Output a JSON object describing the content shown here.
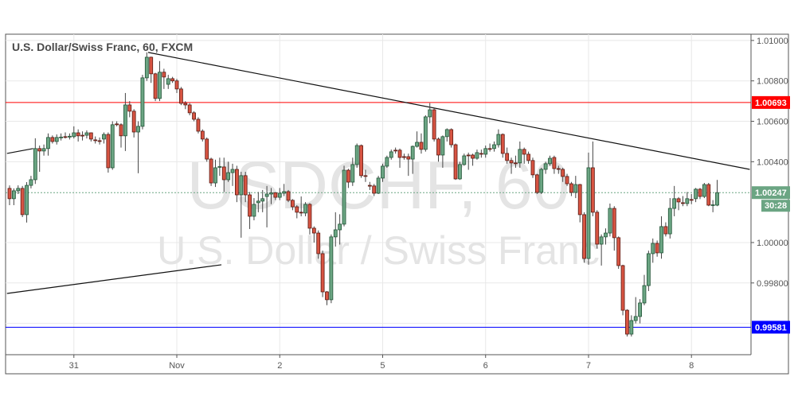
{
  "chart_data": {
    "type": "candlestick",
    "title": "U.S. Dollar/Swiss Franc, 60, FXCM",
    "watermark": {
      "symbol": "USDCHF, 60",
      "name": "U.S. Dollar / Swiss Franc"
    },
    "ylim": [
      0.99445,
      1.01031
    ],
    "y_ticks": [
      "1.01000",
      "1.00800",
      "1.00600",
      "1.00400",
      "1.00000",
      "0.99800"
    ],
    "x_ticks": [
      {
        "label": "31",
        "index": 15
      },
      {
        "label": "Nov",
        "index": 39
      },
      {
        "label": "2",
        "index": 63
      },
      {
        "label": "5",
        "index": 87
      },
      {
        "label": "6",
        "index": 111
      },
      {
        "label": "7",
        "index": 135
      },
      {
        "label": "8",
        "index": 159
      }
    ],
    "grid": true,
    "colors": {
      "up": "#6ba583",
      "down": "#d75442",
      "up_border": "#225437",
      "down_border": "#5b1a13",
      "resistance": "#e00000",
      "support": "#0000dd",
      "last_price": "#6ba583"
    },
    "horizontal_lines": [
      {
        "price": 1.00693,
        "label": "1.00693",
        "color": "#ff0000"
      },
      {
        "price": 0.99581,
        "label": "0.99581",
        "color": "#0000ff"
      }
    ],
    "last_price": {
      "price": 1.00247,
      "label": "1.00247",
      "countdown": "30:28"
    },
    "trendlines": [
      {
        "from": [
          32.3,
          1.00941
        ],
        "to": [
          172.6,
          1.00362
        ]
      },
      {
        "from": [
          -0.6,
          0.99748
        ],
        "to": [
          49.4,
          0.9989
        ]
      },
      {
        "from": [
          -0.6,
          1.00441
        ],
        "to": [
          5.5,
          1.00465
        ]
      }
    ],
    "candles_ohlc": [
      [
        1.00268,
        1.00283,
        1.00185,
        1.00217
      ],
      [
        1.00217,
        1.00268,
        1.00185,
        1.00256
      ],
      [
        1.00256,
        1.00283,
        1.0024,
        1.00268
      ],
      [
        1.00268,
        1.0028,
        1.00126,
        1.00138
      ],
      [
        1.00138,
        1.00299,
        1.00099,
        1.00283
      ],
      [
        1.00283,
        1.0033,
        1.00268,
        1.00311
      ],
      [
        1.00311,
        1.00516,
        1.0029,
        1.00465
      ],
      [
        1.00465,
        1.0048,
        1.0035,
        1.00453
      ],
      [
        1.00453,
        1.00485,
        1.0043,
        1.00465
      ],
      [
        1.00465,
        1.0054,
        1.0043,
        1.0052
      ],
      [
        1.0052,
        1.0053,
        1.0049,
        1.005
      ],
      [
        1.005,
        1.00535,
        1.00485,
        1.0052
      ],
      [
        1.0052,
        1.0054,
        1.00505,
        1.00522
      ],
      [
        1.00524,
        1.00545,
        1.00515,
        1.00522
      ],
      [
        1.00522,
        1.0054,
        1.0051,
        1.00526
      ],
      [
        1.00524,
        1.00575,
        1.00515,
        1.00543
      ],
      [
        1.00543,
        1.0056,
        1.005,
        1.00528
      ],
      [
        1.00531,
        1.0055,
        1.00505,
        1.00529
      ],
      [
        1.00531,
        1.00555,
        1.00515,
        1.00543
      ],
      [
        1.00543,
        1.00545,
        1.005,
        1.00512
      ],
      [
        1.00508,
        1.00525,
        1.0049,
        1.00506
      ],
      [
        1.00504,
        1.0052,
        1.00485,
        1.00502
      ],
      [
        1.00512,
        1.00545,
        1.0049,
        1.00535
      ],
      [
        1.00535,
        1.00545,
        1.00346,
        1.0037
      ],
      [
        1.0037,
        1.006,
        1.0036,
        1.00583
      ],
      [
        1.00587,
        1.006,
        1.00575,
        1.00583
      ],
      [
        1.00583,
        1.0059,
        1.0047,
        1.00528
      ],
      [
        1.00528,
        1.0074,
        1.00453,
        1.00681
      ],
      [
        1.00681,
        1.007,
        1.0062,
        1.0065
      ],
      [
        1.0065,
        1.0066,
        1.0052,
        1.00547
      ],
      [
        1.00547,
        1.006,
        1.00343,
        1.00575
      ],
      [
        1.00575,
        1.0083,
        1.0056,
        1.00815
      ],
      [
        1.00815,
        1.00941,
        1.008,
        1.00917
      ],
      [
        1.00917,
        1.0092,
        1.0079,
        1.00835
      ],
      [
        1.00835,
        1.0084,
        1.007,
        1.00713
      ],
      [
        1.00713,
        1.00898,
        1.007,
        1.00843
      ],
      [
        1.00843,
        1.0086,
        1.0076,
        1.00819
      ],
      [
        1.00783,
        1.0083,
        1.0076,
        1.00811
      ],
      [
        1.00811,
        1.0082,
        1.0079,
        1.008
      ],
      [
        1.008,
        1.0081,
        1.0074,
        1.0076
      ],
      [
        1.0076,
        1.0077,
        1.0068,
        1.00689
      ],
      [
        1.00689,
        1.007,
        1.0066,
        1.00681
      ],
      [
        1.00681,
        1.0069,
        1.0063,
        1.00642
      ],
      [
        1.00642,
        1.0065,
        1.006,
        1.0061
      ],
      [
        1.0061,
        1.0062,
        1.0054,
        1.00551
      ],
      [
        1.00551,
        1.0056,
        1.005,
        1.00512
      ],
      [
        1.00512,
        1.0052,
        1.004,
        1.00413
      ],
      [
        1.00413,
        1.0042,
        1.0028,
        1.00295
      ],
      [
        1.00295,
        1.0041,
        1.00275,
        1.0037
      ],
      [
        1.00374,
        1.0042,
        1.0033,
        1.00376
      ],
      [
        1.00374,
        1.0042,
        1.0025,
        1.00311
      ],
      [
        1.00311,
        1.004,
        1.003,
        1.00346
      ],
      [
        1.00346,
        1.0039,
        1.0028,
        1.00362
      ],
      [
        1.00362,
        1.0038,
        1.002,
        1.00236
      ],
      [
        1.00236,
        1.0035,
        1.00024,
        1.00331
      ],
      [
        1.00331,
        1.0035,
        1.002,
        1.00236
      ],
      [
        1.00236,
        1.0025,
        1.00067,
        1.0013
      ],
      [
        1.0013,
        1.0022,
        1.0011,
        1.00189
      ],
      [
        1.00197,
        1.0025,
        1.0015,
        1.00205
      ],
      [
        1.00205,
        1.0026,
        1.0015,
        1.00217
      ],
      [
        1.00228,
        1.0028,
        1.00075,
        1.0024
      ],
      [
        1.0024,
        1.0027,
        1.0019,
        1.00246
      ],
      [
        1.00246,
        1.0025,
        1.0021,
        1.00224
      ],
      [
        1.00224,
        1.0027,
        1.0021,
        1.00244
      ],
      [
        1.00244,
        1.0029,
        1.0023,
        1.00252
      ],
      [
        1.00252,
        1.0026,
        1.002,
        1.00209
      ],
      [
        1.00209,
        1.00215,
        1.0016,
        1.00177
      ],
      [
        1.00177,
        1.00185,
        1.0012,
        1.0015
      ],
      [
        1.0015,
        1.00228,
        1.0013,
        1.00148
      ],
      [
        1.00146,
        1.002,
        1.0013,
        1.00189
      ],
      [
        1.00189,
        1.00195,
        1.0004,
        1.00071
      ],
      [
        1.00071,
        1.0008,
        1.0,
        1.00047
      ],
      [
        1.00047,
        1.0006,
        0.9992,
        0.99945
      ],
      [
        0.99945,
        0.9996,
        0.9973,
        0.99756
      ],
      [
        0.99756,
        0.9976,
        0.9969,
        0.99717
      ],
      [
        0.99717,
        1.0004,
        0.997,
        1.00028
      ],
      [
        1.00028,
        1.0015,
        0.9998,
        1.00063
      ],
      [
        1.00063,
        1.0014,
        0.9999,
        1.00091
      ],
      [
        1.00091,
        1.0038,
        1.0008,
        1.00358
      ],
      [
        1.00358,
        1.00365,
        1.0027,
        1.00299
      ],
      [
        1.00299,
        1.0042,
        1.0028,
        1.00386
      ],
      [
        1.00386,
        1.0049,
        1.0037,
        1.0048
      ],
      [
        1.0048,
        1.00485,
        1.0032,
        1.00331
      ],
      [
        1.00331,
        1.0036,
        1.003,
        1.00329
      ],
      [
        1.00283,
        1.003,
        1.0026,
        1.00281
      ],
      [
        1.0028,
        1.0029,
        1.0023,
        1.00244
      ],
      [
        1.00244,
        1.0033,
        1.0024,
        1.00319
      ],
      [
        1.00319,
        1.0039,
        1.003,
        1.00378
      ],
      [
        1.00378,
        1.0043,
        1.0037,
        1.00421
      ],
      [
        1.00421,
        1.0046,
        1.0041,
        1.00449
      ],
      [
        1.00457,
        1.0047,
        1.0044,
        1.00455
      ],
      [
        1.00457,
        1.00465,
        1.0037,
        1.00421
      ],
      [
        1.00425,
        1.0044,
        1.0041,
        1.00423
      ],
      [
        1.00425,
        1.0044,
        1.0033,
        1.00413
      ],
      [
        1.00413,
        1.0048,
        1.0034,
        1.00476
      ],
      [
        1.00476,
        1.0055,
        1.0047,
        1.00496
      ],
      [
        1.00496,
        1.0054,
        1.0044,
        1.00461
      ],
      [
        1.00461,
        1.0063,
        1.0045,
        1.00622
      ],
      [
        1.00622,
        1.0069,
        1.0059,
        1.00657
      ],
      [
        1.00657,
        1.00665,
        1.005,
        1.00512
      ],
      [
        1.00512,
        1.0052,
        1.004,
        1.00433
      ],
      [
        1.00433,
        1.0053,
        1.0037,
        1.00524
      ],
      [
        1.00524,
        1.00565,
        1.005,
        1.00559
      ],
      [
        1.00559,
        1.00565,
        1.0047,
        1.00484
      ],
      [
        1.00484,
        1.0049,
        1.0031,
        1.00315
      ],
      [
        1.00315,
        1.004,
        1.0031,
        1.00386
      ],
      [
        1.00386,
        1.0044,
        1.0038,
        1.00429
      ],
      [
        1.00433,
        1.00445,
        1.0036,
        1.00431
      ],
      [
        1.00433,
        1.0044,
        1.0038,
        1.00417
      ],
      [
        1.00417,
        1.0046,
        1.0041,
        1.00445
      ],
      [
        1.00441,
        1.0046,
        1.0042,
        1.00439
      ],
      [
        1.00437,
        1.0048,
        1.0042,
        1.00465
      ],
      [
        1.00465,
        1.0049,
        1.0045,
        1.00463
      ],
      [
        1.00465,
        1.005,
        1.0045,
        1.00484
      ],
      [
        1.00484,
        1.0056,
        1.0047,
        1.00535
      ],
      [
        1.00535,
        1.0054,
        1.0042,
        1.00441
      ],
      [
        1.00441,
        1.0047,
        1.0039,
        1.00406
      ],
      [
        1.00406,
        1.0042,
        1.0034,
        1.00394
      ],
      [
        1.00394,
        1.0043,
        1.0037,
        1.00392
      ],
      [
        1.00394,
        1.005,
        1.0037,
        1.00461
      ],
      [
        1.00461,
        1.0047,
        1.0039,
        1.00437
      ],
      [
        1.00437,
        1.0045,
        1.0039,
        1.00406
      ],
      [
        1.00406,
        1.0042,
        1.0032,
        1.00335
      ],
      [
        1.00335,
        1.0034,
        1.0024,
        1.00248
      ],
      [
        1.00248,
        1.0037,
        1.0024,
        1.00362
      ],
      [
        1.00362,
        1.004,
        1.0034,
        1.0039
      ],
      [
        1.0039,
        1.0043,
        1.0038,
        1.00417
      ],
      [
        1.00421,
        1.0043,
        1.0034,
        1.00366
      ],
      [
        1.00366,
        1.0038,
        1.0034,
        1.00364
      ],
      [
        1.00362,
        1.0037,
        1.003,
        1.00327
      ],
      [
        1.00327,
        1.0034,
        1.0028,
        1.00291
      ],
      [
        1.00291,
        1.003,
        1.0023,
        1.00248
      ],
      [
        1.00248,
        1.0033,
        1.0022,
        1.00287
      ],
      [
        1.00287,
        1.0029,
        1.001,
        1.00138
      ],
      [
        1.00138,
        1.0015,
        0.999,
        0.99921
      ],
      [
        0.99921,
        1.00445,
        0.9989,
        1.0037
      ],
      [
        1.0037,
        1.005,
        1.0013,
        1.0015
      ],
      [
        1.0015,
        1.0016,
        0.9997,
        0.99992
      ],
      [
        0.99992,
        1.0004,
        0.99886,
        1.00028
      ],
      [
        1.00028,
        1.0007,
        0.9999,
        1.00047
      ],
      [
        1.00047,
        1.00193,
        1.0003,
        1.00169
      ],
      [
        1.00169,
        1.0018,
        0.9996,
        1.00024
      ],
      [
        1.00024,
        1.0003,
        0.9987,
        0.99886
      ],
      [
        0.99886,
        0.9989,
        0.9964,
        0.99665
      ],
      [
        0.99665,
        0.9967,
        0.99535,
        0.99547
      ],
      [
        0.99547,
        0.9964,
        0.99535,
        0.99614
      ],
      [
        0.99614,
        0.9973,
        0.996,
        0.99634
      ],
      [
        0.99634,
        0.9972,
        0.996,
        0.99701
      ],
      [
        0.99701,
        0.9984,
        0.9969,
        0.99787
      ],
      [
        0.99787,
        0.9996,
        0.9976,
        0.99945
      ],
      [
        0.99945,
        1.0002,
        0.999,
        0.99996
      ],
      [
        0.99996,
        1.0001,
        0.9993,
        0.99949
      ],
      [
        0.99949,
        1.0013,
        0.9992,
        1.00079
      ],
      [
        1.00079,
        1.001,
        1.0003,
        1.00043
      ],
      [
        1.00043,
        1.0022,
        1.0002,
        1.00169
      ],
      [
        1.00169,
        1.0028,
        1.0013,
        1.00217
      ],
      [
        1.00217,
        1.00225,
        1.0016,
        1.00201
      ],
      [
        1.00197,
        1.0023,
        1.0018,
        1.00195
      ],
      [
        1.00193,
        1.0025,
        1.0018,
        1.00217
      ],
      [
        1.00213,
        1.0024,
        1.0019,
        1.00211
      ],
      [
        1.00217,
        1.0027,
        1.002,
        1.00264
      ],
      [
        1.00264,
        1.0027,
        1.00215,
        1.00228
      ],
      [
        1.00228,
        1.00295,
        1.0022,
        1.00287
      ],
      [
        1.00287,
        1.00295,
        1.0018,
        1.00185
      ],
      [
        1.00185,
        1.0021,
        1.0015,
        1.00187
      ],
      [
        1.00185,
        1.0031,
        1.0018,
        1.00247
      ]
    ]
  }
}
